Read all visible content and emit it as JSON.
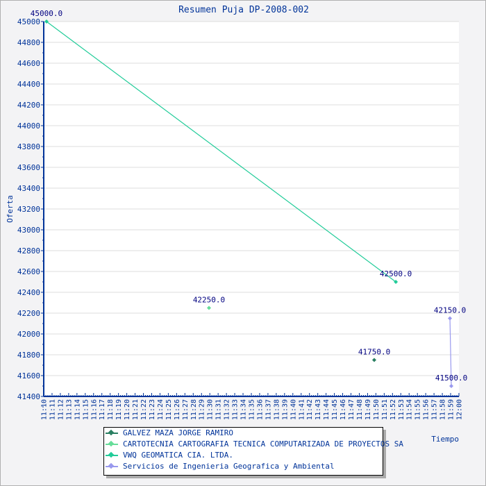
{
  "chart_data": {
    "type": "line",
    "title": "Resumen Puja DP-2008-002",
    "xlabel": "Tiempo",
    "ylabel": "Oferta",
    "ylim": [
      41400,
      45000
    ],
    "yticks": [
      "41400",
      "41600",
      "41800",
      "42000",
      "42200",
      "42400",
      "42600",
      "42800",
      "43000",
      "43200",
      "43400",
      "43600",
      "43800",
      "44000",
      "44200",
      "44400",
      "44600",
      "44800",
      "45000"
    ],
    "xlim": [
      "11:10",
      "12:00"
    ],
    "xticks": [
      "11:10",
      "11:11",
      "11:12",
      "11:13",
      "11:14",
      "11:15",
      "11:16",
      "11:17",
      "11:18",
      "11:19",
      "11:20",
      "11:21",
      "11:22",
      "11:23",
      "11:24",
      "11:25",
      "11:26",
      "11:27",
      "11:28",
      "11:29",
      "11:30",
      "11:31",
      "11:32",
      "11:33",
      "11:34",
      "11:35",
      "11:36",
      "11:37",
      "11:38",
      "11:39",
      "11:40",
      "11:41",
      "11:42",
      "11:43",
      "11:44",
      "11:45",
      "11:46",
      "11:47",
      "11:48",
      "11:49",
      "11:50",
      "11:51",
      "11:52",
      "11:53",
      "11:54",
      "11:55",
      "11:56",
      "11:57",
      "11:58",
      "11:59",
      "12:00"
    ],
    "grid": true,
    "legend_position": "bottom-center",
    "series": [
      {
        "name": "GALVEZ MAZA JORGE RAMIRO",
        "color": "#2a7f62",
        "points": [
          {
            "x": "11:49:48",
            "y": 41750,
            "label": "41750.0"
          }
        ]
      },
      {
        "name": "CARTOTECNIA CARTOGRAFIA TECNICA COMPUTARIZADA DE PROYECTOS SA",
        "color": "#66dd99",
        "points": [
          {
            "x": "11:29:54",
            "y": 42250,
            "label": "42250.0"
          }
        ]
      },
      {
        "name": "VWQ GEOMATICA CIA. LTDA.",
        "color": "#22cc99",
        "points": [
          {
            "x": "11:10:20",
            "y": 45000,
            "label": "45000.0"
          },
          {
            "x": "11:52:24",
            "y": 42500,
            "label": "42500.0"
          }
        ]
      },
      {
        "name": "Servicios de Ingenieria Geografica y Ambiental",
        "color": "#9999ee",
        "points": [
          {
            "x": "11:58:55",
            "y": 42150,
            "label": "42150.0"
          },
          {
            "x": "11:59:05",
            "y": 41500,
            "label": "41500.0"
          }
        ]
      }
    ]
  }
}
